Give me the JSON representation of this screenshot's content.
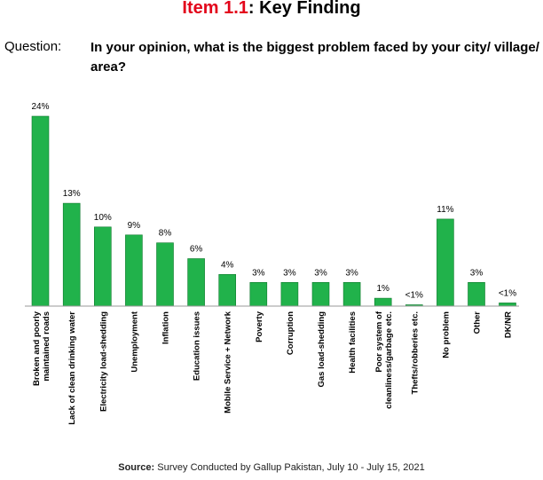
{
  "header": {
    "item_number": "Item 1.1",
    "item_separator": ":",
    "item_title": " Key Finding"
  },
  "question": {
    "label": "Question:",
    "text": "In your opinion, what is the biggest problem faced by your city/ village/ area?"
  },
  "chart_data": {
    "type": "bar",
    "title": "",
    "xlabel": "",
    "ylabel": "",
    "ylim": [
      0,
      24
    ],
    "grid": false,
    "legend": "none",
    "bar_color": "#21b24b",
    "bar_edge_color": "#0e7a2c",
    "categories": [
      [
        "Broken and poorly",
        "maintained roads"
      ],
      [
        "Lack of clean drinking water"
      ],
      [
        "Electricity load-shedding"
      ],
      [
        "Unemployment"
      ],
      [
        "Inflation"
      ],
      [
        "Education issues"
      ],
      [
        "Mobile Service + Network"
      ],
      [
        "Poverty"
      ],
      [
        "Corruption"
      ],
      [
        "Gas load-shedding"
      ],
      [
        "Health facilities"
      ],
      [
        "Poor system of",
        "cleanliness/garbage etc."
      ],
      [
        "Thefts/robberies etc."
      ],
      [
        "No problem"
      ],
      [
        "Other"
      ],
      [
        "DK/NR"
      ]
    ],
    "values": [
      24,
      13,
      10,
      9,
      8,
      6,
      4,
      3,
      3,
      3,
      3,
      1,
      0.1,
      11,
      3,
      0.4
    ],
    "data_labels": [
      "24%",
      "13%",
      "10%",
      "9%",
      "8%",
      "6%",
      "4%",
      "3%",
      "3%",
      "3%",
      "3%",
      "1%",
      "<1%",
      "11%",
      "3%",
      "<1%"
    ]
  },
  "source": {
    "label": "Source:",
    "text": " Survey Conducted by Gallup Pakistan, July 10 - July 15, 2021"
  }
}
